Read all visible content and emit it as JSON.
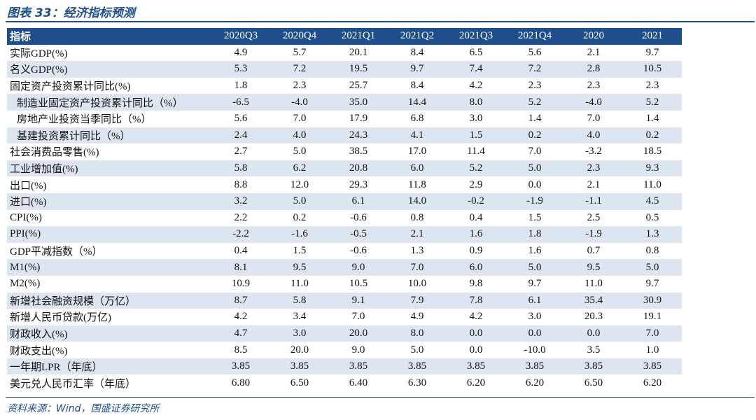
{
  "title": "图表 33：经济指标预测",
  "header": {
    "label": "指标",
    "columns": [
      "2020Q3",
      "2020Q4",
      "2021Q1",
      "2021Q2",
      "2021Q3",
      "2021Q4",
      "2020",
      "2021"
    ]
  },
  "rows": [
    {
      "label": "实际GDP(%)",
      "indent": false,
      "values": [
        "4.9",
        "5.7",
        "20.1",
        "8.4",
        "6.5",
        "5.6",
        "2.1",
        "9.7"
      ]
    },
    {
      "label": "名义GDP(%)",
      "indent": false,
      "values": [
        "5.3",
        "7.2",
        "19.5",
        "9.7",
        "7.4",
        "7.2",
        "2.8",
        "10.5"
      ]
    },
    {
      "label": "固定资产投资累计同比(%)",
      "indent": false,
      "values": [
        "1.8",
        "2.3",
        "25.7",
        "8.4",
        "4.2",
        "2.3",
        "2.3",
        "2.3"
      ]
    },
    {
      "label": "制造业固定资产投资累计同比（%）",
      "indent": true,
      "values": [
        "-6.5",
        "-4.0",
        "35.0",
        "14.4",
        "8.0",
        "5.2",
        "-4.0",
        "5.2"
      ]
    },
    {
      "label": "房地产业投资当季同比（%）",
      "indent": true,
      "values": [
        "5.6",
        "7.0",
        "17.9",
        "6.8",
        "3.0",
        "1.4",
        "7.0",
        "1.4"
      ]
    },
    {
      "label": "基建投资累计同比（%）",
      "indent": true,
      "values": [
        "2.4",
        "4.0",
        "24.3",
        "4.1",
        "1.5",
        "0.2",
        "4.0",
        "0.2"
      ]
    },
    {
      "label": "社会消费品零售(%)",
      "indent": false,
      "values": [
        "2.7",
        "5.0",
        "38.5",
        "17.0",
        "11.4",
        "7.0",
        "-3.2",
        "18.5"
      ]
    },
    {
      "label": "工业增加值(%)",
      "indent": false,
      "values": [
        "5.8",
        "6.2",
        "20.8",
        "6.0",
        "5.2",
        "5.0",
        "2.3",
        "9.3"
      ]
    },
    {
      "label": "出口(%)",
      "indent": false,
      "values": [
        "8.8",
        "12.0",
        "29.3",
        "11.8",
        "2.9",
        "0.0",
        "2.1",
        "11.0"
      ]
    },
    {
      "label": "进口(%)",
      "indent": false,
      "values": [
        "3.2",
        "5.0",
        "6.1",
        "14.0",
        "-0.2",
        "-1.9",
        "-1.1",
        "4.5"
      ]
    },
    {
      "label": "CPI(%)",
      "indent": false,
      "values": [
        "2.2",
        "0.2",
        "-0.6",
        "0.8",
        "0.4",
        "1.5",
        "2.5",
        "0.5"
      ]
    },
    {
      "label": "PPI(%)",
      "indent": false,
      "values": [
        "-2.2",
        "-1.6",
        "-0.5",
        "2.1",
        "1.6",
        "1.8",
        "-1.9",
        "1.3"
      ]
    },
    {
      "label": "GDP平减指数（%）",
      "indent": false,
      "values": [
        "0.4",
        "1.5",
        "-0.6",
        "1.3",
        "0.9",
        "1.6",
        "0.7",
        "0.8"
      ]
    },
    {
      "label": "M1(%)",
      "indent": false,
      "values": [
        "8.1",
        "9.5",
        "9.0",
        "7.0",
        "6.0",
        "5.0",
        "9.5",
        "5.0"
      ]
    },
    {
      "label": "M2(%)",
      "indent": false,
      "values": [
        "10.9",
        "11.0",
        "10.5",
        "10.0",
        "9.8",
        "9.7",
        "11.0",
        "9.7"
      ]
    },
    {
      "label": "新增社会融资规模（万亿）",
      "indent": false,
      "values": [
        "8.7",
        "5.8",
        "9.1",
        "7.9",
        "7.8",
        "6.1",
        "35.4",
        "30.9"
      ]
    },
    {
      "label": "新增人民币贷款(万亿)",
      "indent": false,
      "values": [
        "4.2",
        "3.4",
        "7.0",
        "4.9",
        "4.2",
        "3.0",
        "20.3",
        "19.1"
      ]
    },
    {
      "label": "财政收入(%)",
      "indent": false,
      "values": [
        "4.7",
        "3.0",
        "20.0",
        "8.0",
        "0.0",
        "0.0",
        "0.0",
        "7.0"
      ]
    },
    {
      "label": "财政支出(%)",
      "indent": false,
      "values": [
        "8.5",
        "20.0",
        "9.0",
        "5.0",
        "0.0",
        "-10.0",
        "3.5",
        "1.0"
      ]
    },
    {
      "label": "一年期LPR（年底）",
      "indent": false,
      "values": [
        "3.85",
        "3.85",
        "3.85",
        "3.85",
        "3.85",
        "3.85",
        "3.85",
        "3.85"
      ]
    },
    {
      "label": "美元兑人民币汇率（年底）",
      "indent": false,
      "values": [
        "6.80",
        "6.50",
        "6.40",
        "6.30",
        "6.20",
        "6.20",
        "6.50",
        "6.20"
      ]
    }
  ],
  "source": "资料来源：Wind，国盛证券研究所",
  "colors": {
    "accent": "#1f4e8c",
    "stripe": "#dde5f1"
  }
}
